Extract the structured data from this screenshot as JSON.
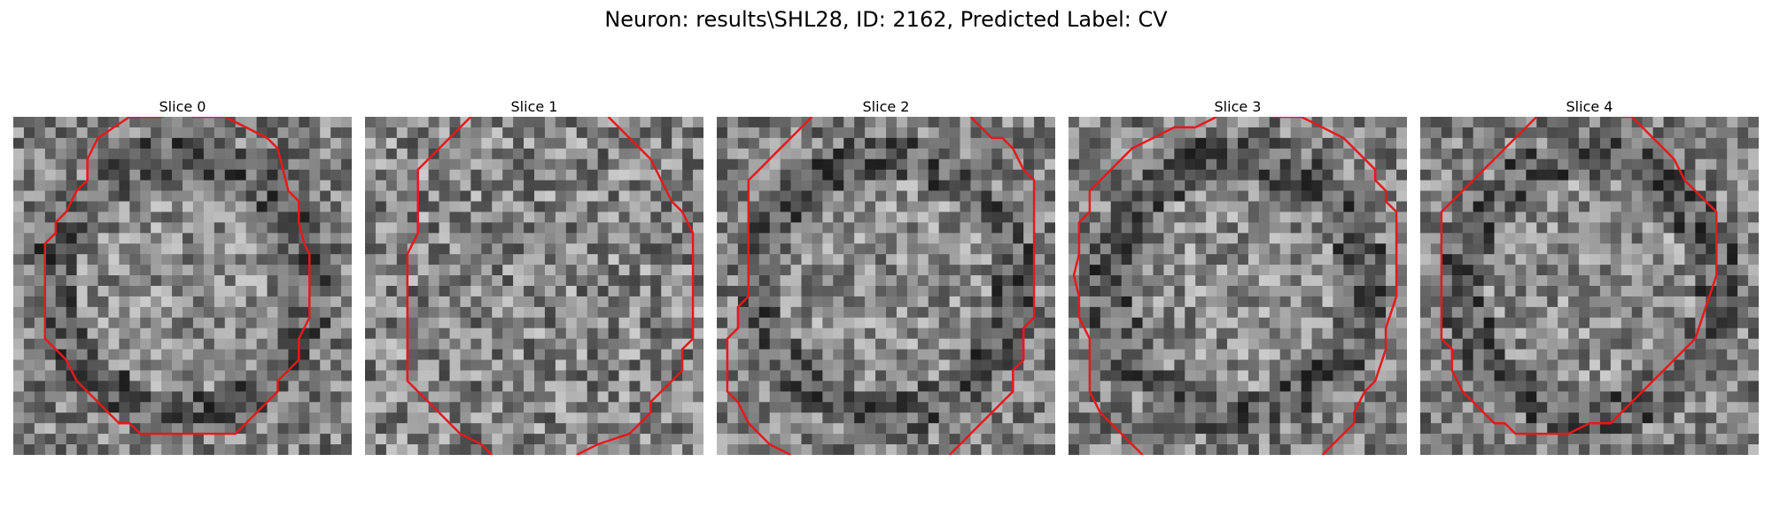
{
  "figure": {
    "title": "Neuron: results\\SHL28, ID: 2162, Predicted Label: CV"
  },
  "panels": [
    {
      "title": "Slice 0",
      "seed": 11,
      "style": "ring"
    },
    {
      "title": "Slice 1",
      "seed": 23,
      "style": "noise"
    },
    {
      "title": "Slice 2",
      "seed": 37,
      "style": "ring"
    },
    {
      "title": "Slice 3",
      "seed": 41,
      "style": "ring"
    },
    {
      "title": "Slice 4",
      "seed": 53,
      "style": "ring"
    }
  ],
  "colors": {
    "contour": "#e41a1c"
  }
}
